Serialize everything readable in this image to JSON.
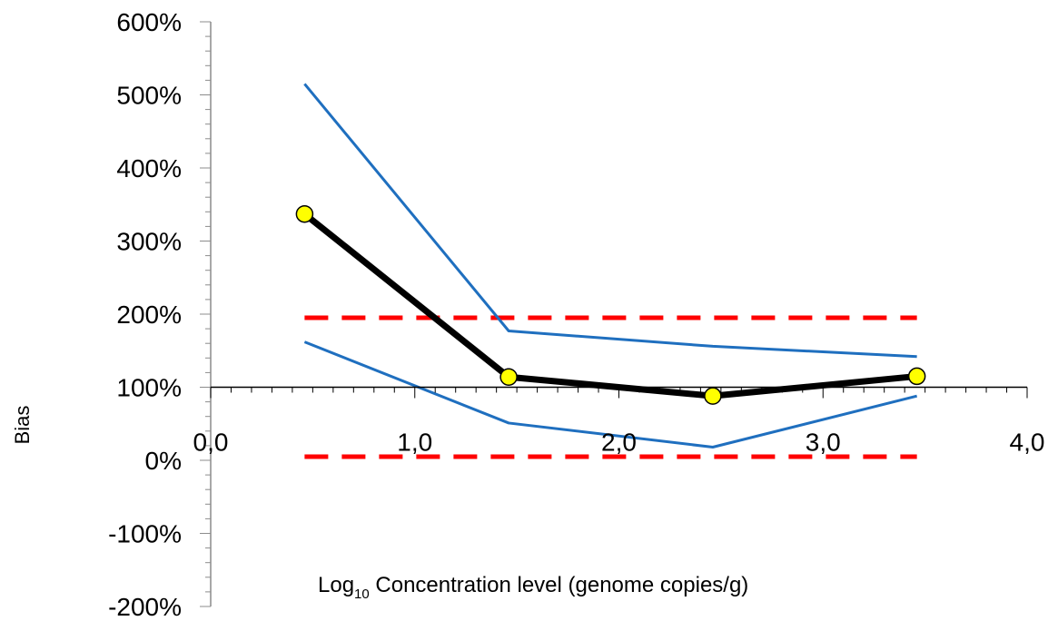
{
  "chart_data": {
    "type": "line",
    "xlabel_prefix": "Log",
    "xlabel_subscript": "10",
    "xlabel_suffix": " Concentration level (genome copies/g)",
    "ylabel": "Bias",
    "xlim": [
      0,
      4
    ],
    "ylim": [
      -2,
      6
    ],
    "x_ticks": [
      "0,0",
      "1,0",
      "2,0",
      "3,0",
      "4,0"
    ],
    "y_ticks": [
      "600%",
      "500%",
      "400%",
      "300%",
      "200%",
      "100%",
      "0%",
      "-100%",
      "-200%"
    ],
    "x": [
      0.46,
      1.46,
      2.46,
      3.46
    ],
    "series": [
      {
        "role": "bias",
        "values": [
          3.37,
          1.14,
          0.88,
          1.15
        ],
        "color": "#000000",
        "markers": true,
        "marker_color": "#ffff00"
      },
      {
        "role": "upper-limit",
        "values": [
          5.15,
          1.77,
          1.56,
          1.42
        ],
        "color": "#1f6fbf"
      },
      {
        "role": "lower-limit",
        "values": [
          1.62,
          0.51,
          0.18,
          0.88
        ],
        "color": "#1f6fbf"
      }
    ],
    "acceptance_limits": [
      {
        "y": 1.95,
        "x_range": [
          0.46,
          3.46
        ],
        "color": "#ff0000",
        "style": "dashed"
      },
      {
        "y": 0.05,
        "x_range": [
          0.46,
          3.46
        ],
        "color": "#ff0000",
        "style": "dashed"
      }
    ]
  }
}
